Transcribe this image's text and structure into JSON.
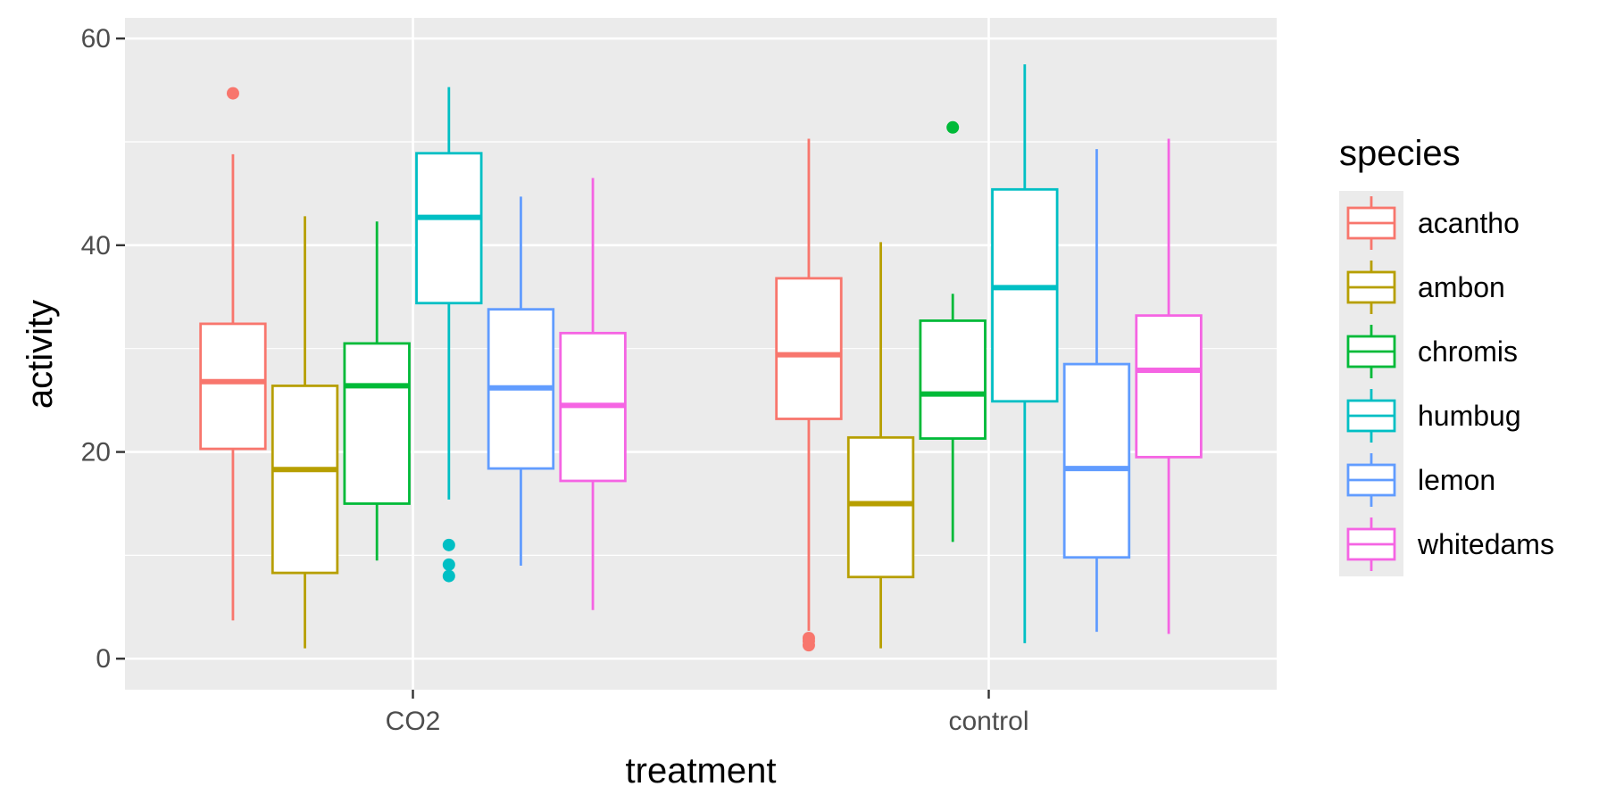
{
  "chart_data": {
    "type": "boxplot",
    "xlabel": "treatment",
    "ylabel": "activity",
    "categories": [
      "CO2",
      "control"
    ],
    "ylim": [
      -3,
      62
    ],
    "yticks": [
      0,
      20,
      40,
      60
    ],
    "grid": true,
    "legend": {
      "title": "species",
      "position": "right"
    },
    "series": [
      {
        "name": "acantho",
        "color": "#F8766D",
        "boxes": [
          {
            "lower": 3.7,
            "q1": 20.3,
            "median": 26.8,
            "q3": 32.4,
            "upper": 48.8,
            "outliers": [
              54.7
            ]
          },
          {
            "lower": 2.7,
            "q1": 23.2,
            "median": 29.4,
            "q3": 36.8,
            "upper": 50.3,
            "outliers": [
              1.3,
              1.7,
              2.0
            ]
          }
        ]
      },
      {
        "name": "ambon",
        "color": "#B79F00",
        "boxes": [
          {
            "lower": 1.0,
            "q1": 8.3,
            "median": 18.3,
            "q3": 26.4,
            "upper": 42.8,
            "outliers": []
          },
          {
            "lower": 1.0,
            "q1": 7.9,
            "median": 15.0,
            "q3": 21.4,
            "upper": 40.3,
            "outliers": []
          }
        ]
      },
      {
        "name": "chromis",
        "color": "#00BA38",
        "boxes": [
          {
            "lower": 9.5,
            "q1": 15.0,
            "median": 26.4,
            "q3": 30.5,
            "upper": 42.3,
            "outliers": []
          },
          {
            "lower": 11.3,
            "q1": 21.3,
            "median": 25.6,
            "q3": 32.7,
            "upper": 35.3,
            "outliers": [
              51.4
            ]
          }
        ]
      },
      {
        "name": "humbug",
        "color": "#00BFC4",
        "boxes": [
          {
            "lower": 15.4,
            "q1": 34.4,
            "median": 42.7,
            "q3": 48.9,
            "upper": 55.3,
            "outliers": [
              11.0,
              9.1,
              8.0
            ]
          },
          {
            "lower": 1.5,
            "q1": 24.9,
            "median": 35.9,
            "q3": 45.4,
            "upper": 57.5,
            "outliers": []
          }
        ]
      },
      {
        "name": "lemon",
        "color": "#619CFF",
        "boxes": [
          {
            "lower": 9.0,
            "q1": 18.4,
            "median": 26.2,
            "q3": 33.8,
            "upper": 44.7,
            "outliers": []
          },
          {
            "lower": 2.6,
            "q1": 9.8,
            "median": 18.4,
            "q3": 28.5,
            "upper": 49.3,
            "outliers": []
          }
        ]
      },
      {
        "name": "whitedams",
        "color": "#F564E3",
        "boxes": [
          {
            "lower": 4.7,
            "q1": 17.2,
            "median": 24.5,
            "q3": 31.5,
            "upper": 46.5,
            "outliers": []
          },
          {
            "lower": 2.4,
            "q1": 19.5,
            "median": 27.9,
            "q3": 33.2,
            "upper": 50.3,
            "outliers": []
          }
        ]
      }
    ]
  }
}
